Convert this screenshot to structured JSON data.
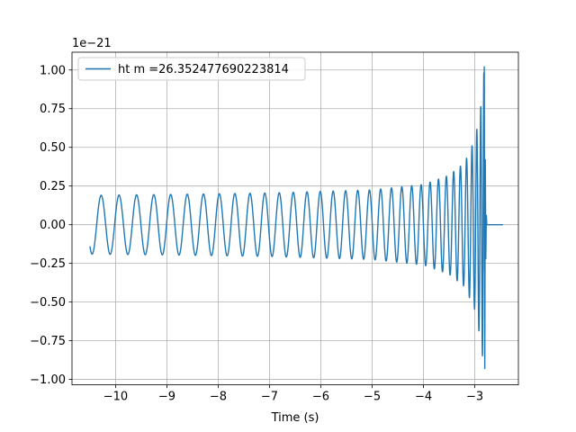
{
  "chart_data": {
    "type": "line",
    "title": "",
    "xlabel": "Time (s)",
    "ylabel": "",
    "y_offset_label": "1e−21",
    "y_scale": 1e-21,
    "xlim": [
      -10.85,
      -2.15
    ],
    "ylim": [
      -1.035,
      1.115
    ],
    "x_ticks": [
      -10,
      -9,
      -8,
      -7,
      -6,
      -5,
      -4,
      -3
    ],
    "x_tick_labels": [
      "−10",
      "−9",
      "−8",
      "−7",
      "−6",
      "−5",
      "−4",
      "−3"
    ],
    "y_ticks": [
      -1.0,
      -0.75,
      -0.5,
      -0.25,
      0.0,
      0.25,
      0.5,
      0.75,
      1.0
    ],
    "y_tick_labels": [
      "−1.00",
      "−0.75",
      "−0.50",
      "−0.25",
      "0.00",
      "0.25",
      "0.50",
      "0.75",
      "1.00"
    ],
    "grid": true,
    "legend_position": "upper-left",
    "series": [
      {
        "name": "ht m =26.352477690223814",
        "color": "#1f77b4",
        "waveform": "chirp",
        "t_start": -10.5,
        "t_merger": -2.8,
        "t_end": -2.45,
        "amplitude_start": 0.19,
        "amplitude_peak_positive": 1.02,
        "amplitude_peak_negative": -0.93,
        "start_value": -0.14,
        "envelope": [
          {
            "t": -10.5,
            "a": 0.19
          },
          {
            "t": -9.0,
            "a": 0.195
          },
          {
            "t": -7.0,
            "a": 0.205
          },
          {
            "t": -5.0,
            "a": 0.225
          },
          {
            "t": -4.0,
            "a": 0.26
          },
          {
            "t": -3.5,
            "a": 0.32
          },
          {
            "t": -3.2,
            "a": 0.4
          },
          {
            "t": -3.0,
            "a": 0.55
          },
          {
            "t": -2.9,
            "a": 0.72
          },
          {
            "t": -2.85,
            "a": 0.85
          },
          {
            "t": -2.82,
            "a": 1.0
          }
        ]
      }
    ]
  }
}
